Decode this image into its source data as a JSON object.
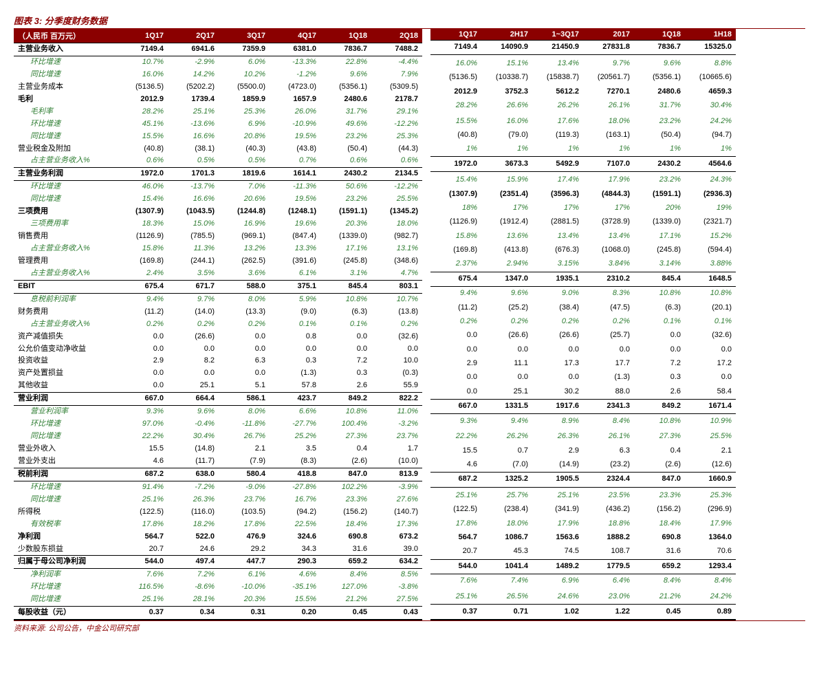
{
  "title": "图表 3: 分季度财务数据",
  "source": "资料来源: 公司公告，中金公司研究部",
  "label_header": "（人民币 百万元）",
  "colors": {
    "header_bg": "#8b0000",
    "header_fg": "#ffffff",
    "green": "#2e7d32",
    "title": "#8b0000"
  },
  "left": {
    "cols": [
      "1Q17",
      "2Q17",
      "3Q17",
      "4Q17",
      "1Q18",
      "2Q18"
    ]
  },
  "right": {
    "cols": [
      "1Q17",
      "2H17",
      "1~3Q17",
      "2017",
      "1Q18",
      "1H18"
    ]
  },
  "rows": [
    {
      "k": "rev",
      "label": "主营业务收入",
      "cls": "section",
      "L": [
        "7149.4",
        "6941.6",
        "7359.9",
        "6381.0",
        "7836.7",
        "7488.2"
      ],
      "R": [
        "7149.4",
        "14090.9",
        "21450.9",
        "27831.8",
        "7836.7",
        "15325.0"
      ]
    },
    {
      "k": "rev_qoq",
      "label": "环比增速",
      "cls": "sub",
      "L": [
        "10.7%",
        "-2.9%",
        "6.0%",
        "-13.3%",
        "22.8%",
        "-4.4%"
      ],
      "R": [
        "",
        "",
        "",
        "",
        "",
        ""
      ]
    },
    {
      "k": "rev_yoy",
      "label": "同比增速",
      "cls": "sub",
      "L": [
        "16.0%",
        "14.2%",
        "10.2%",
        "-1.2%",
        "9.6%",
        "7.9%"
      ],
      "R": [
        "16.0%",
        "15.1%",
        "13.4%",
        "9.7%",
        "9.6%",
        "8.8%"
      ]
    },
    {
      "k": "cogs",
      "label": "主营业务成本",
      "cls": "plain",
      "L": [
        "(5136.5)",
        "(5202.2)",
        "(5500.0)",
        "(4723.0)",
        "(5356.1)",
        "(5309.5)"
      ],
      "R": [
        "(5136.5)",
        "(10338.7)",
        "(15838.7)",
        "(20561.7)",
        "(5356.1)",
        "(10665.6)"
      ]
    },
    {
      "k": "gp",
      "label": "毛利",
      "cls": "bold",
      "L": [
        "2012.9",
        "1739.4",
        "1859.9",
        "1657.9",
        "2480.6",
        "2178.7"
      ],
      "R": [
        "2012.9",
        "3752.3",
        "5612.2",
        "7270.1",
        "2480.6",
        "4659.3"
      ]
    },
    {
      "k": "gpm",
      "label": "毛利率",
      "cls": "sub",
      "L": [
        "28.2%",
        "25.1%",
        "25.3%",
        "26.0%",
        "31.7%",
        "29.1%"
      ],
      "R": [
        "28.2%",
        "26.6%",
        "26.2%",
        "26.1%",
        "31.7%",
        "30.4%"
      ]
    },
    {
      "k": "gp_qoq",
      "label": "环比增速",
      "cls": "sub",
      "L": [
        "45.1%",
        "-13.6%",
        "6.9%",
        "-10.9%",
        "49.6%",
        "-12.2%"
      ],
      "R": [
        "",
        "",
        "",
        "",
        "",
        ""
      ]
    },
    {
      "k": "gp_yoy",
      "label": "同比增速",
      "cls": "sub",
      "L": [
        "15.5%",
        "16.6%",
        "20.8%",
        "19.5%",
        "23.2%",
        "25.3%"
      ],
      "R": [
        "15.5%",
        "16.0%",
        "17.6%",
        "18.0%",
        "23.2%",
        "24.2%"
      ]
    },
    {
      "k": "tax",
      "label": "营业税金及附加",
      "cls": "plain",
      "L": [
        "(40.8)",
        "(38.1)",
        "(40.3)",
        "(43.8)",
        "(50.4)",
        "(44.3)"
      ],
      "R": [
        "(40.8)",
        "(79.0)",
        "(119.3)",
        "(163.1)",
        "(50.4)",
        "(94.7)"
      ]
    },
    {
      "k": "tax_pct",
      "label": "占主营业务收入%",
      "cls": "sub",
      "L": [
        "0.6%",
        "0.5%",
        "0.5%",
        "0.7%",
        "0.6%",
        "0.6%"
      ],
      "R": [
        "1%",
        "1%",
        "1%",
        "1%",
        "1%",
        "1%"
      ]
    },
    {
      "k": "op_biz",
      "label": "主营业务利润",
      "cls": "section",
      "L": [
        "1972.0",
        "1701.3",
        "1819.6",
        "1614.1",
        "2430.2",
        "2134.5"
      ],
      "R": [
        "1972.0",
        "3673.3",
        "5492.9",
        "7107.0",
        "2430.2",
        "4564.6"
      ]
    },
    {
      "k": "ob_qoq",
      "label": "环比增速",
      "cls": "sub",
      "L": [
        "46.0%",
        "-13.7%",
        "7.0%",
        "-11.3%",
        "50.6%",
        "-12.2%"
      ],
      "R": [
        "",
        "",
        "",
        "",
        "",
        ""
      ]
    },
    {
      "k": "ob_yoy",
      "label": "同比增速",
      "cls": "sub",
      "L": [
        "15.4%",
        "16.6%",
        "20.6%",
        "19.5%",
        "23.2%",
        "25.5%"
      ],
      "R": [
        "15.4%",
        "15.9%",
        "17.4%",
        "17.9%",
        "23.2%",
        "24.3%"
      ]
    },
    {
      "k": "opex",
      "label": "三项费用",
      "cls": "bold",
      "L": [
        "(1307.9)",
        "(1043.5)",
        "(1244.8)",
        "(1248.1)",
        "(1591.1)",
        "(1345.2)"
      ],
      "R": [
        "(1307.9)",
        "(2351.4)",
        "(3596.3)",
        "(4844.3)",
        "(1591.1)",
        "(2936.3)"
      ]
    },
    {
      "k": "opex_r",
      "label": "三项费用率",
      "cls": "sub",
      "L": [
        "18.3%",
        "15.0%",
        "16.9%",
        "19.6%",
        "20.3%",
        "18.0%"
      ],
      "R": [
        "18%",
        "17%",
        "17%",
        "17%",
        "20%",
        "19%"
      ]
    },
    {
      "k": "sell",
      "label": "销售费用",
      "cls": "plain",
      "L": [
        "(1126.9)",
        "(785.5)",
        "(969.1)",
        "(847.4)",
        "(1339.0)",
        "(982.7)"
      ],
      "R": [
        "(1126.9)",
        "(1912.4)",
        "(2881.5)",
        "(3728.9)",
        "(1339.0)",
        "(2321.7)"
      ]
    },
    {
      "k": "sell_pct",
      "label": "占主营业务收入%",
      "cls": "sub",
      "L": [
        "15.8%",
        "11.3%",
        "13.2%",
        "13.3%",
        "17.1%",
        "13.1%"
      ],
      "R": [
        "15.8%",
        "13.6%",
        "13.4%",
        "13.4%",
        "17.1%",
        "15.2%"
      ]
    },
    {
      "k": "admin",
      "label": "管理费用",
      "cls": "plain",
      "L": [
        "(169.8)",
        "(244.1)",
        "(262.5)",
        "(391.6)",
        "(245.8)",
        "(348.6)"
      ],
      "R": [
        "(169.8)",
        "(413.8)",
        "(676.3)",
        "(1068.0)",
        "(245.8)",
        "(594.4)"
      ]
    },
    {
      "k": "admin_pct",
      "label": "占主营业务收入%",
      "cls": "sub",
      "L": [
        "2.4%",
        "3.5%",
        "3.6%",
        "6.1%",
        "3.1%",
        "4.7%"
      ],
      "R": [
        "2.37%",
        "2.94%",
        "3.15%",
        "3.84%",
        "3.14%",
        "3.88%"
      ]
    },
    {
      "k": "ebit",
      "label": "EBIT",
      "cls": "section",
      "L": [
        "675.4",
        "671.7",
        "588.0",
        "375.1",
        "845.4",
        "803.1"
      ],
      "R": [
        "675.4",
        "1347.0",
        "1935.1",
        "2310.2",
        "845.4",
        "1648.5"
      ]
    },
    {
      "k": "ebit_m",
      "label": "息税前利润率",
      "cls": "sub",
      "L": [
        "9.4%",
        "9.7%",
        "8.0%",
        "5.9%",
        "10.8%",
        "10.7%"
      ],
      "R": [
        "9.4%",
        "9.6%",
        "9.0%",
        "8.3%",
        "10.8%",
        "10.8%"
      ]
    },
    {
      "k": "fin",
      "label": "财务费用",
      "cls": "plain",
      "L": [
        "(11.2)",
        "(14.0)",
        "(13.3)",
        "(9.0)",
        "(6.3)",
        "(13.8)"
      ],
      "R": [
        "(11.2)",
        "(25.2)",
        "(38.4)",
        "(47.5)",
        "(6.3)",
        "(20.1)"
      ]
    },
    {
      "k": "fin_pct",
      "label": "占主营业务收入%",
      "cls": "sub",
      "L": [
        "0.2%",
        "0.2%",
        "0.2%",
        "0.1%",
        "0.1%",
        "0.2%"
      ],
      "R": [
        "0.2%",
        "0.2%",
        "0.2%",
        "0.2%",
        "0.1%",
        "0.1%"
      ]
    },
    {
      "k": "impair",
      "label": "资产减值损失",
      "cls": "plain",
      "L": [
        "0.0",
        "(26.6)",
        "0.0",
        "0.8",
        "0.0",
        "(32.6)"
      ],
      "R": [
        "0.0",
        "(26.6)",
        "(26.6)",
        "(25.7)",
        "0.0",
        "(32.6)"
      ]
    },
    {
      "k": "fv",
      "label": "公允价值变动净收益",
      "cls": "plain",
      "L": [
        "0.0",
        "0.0",
        "0.0",
        "0.0",
        "0.0",
        "0.0"
      ],
      "R": [
        "0.0",
        "0.0",
        "0.0",
        "0.0",
        "0.0",
        "0.0"
      ]
    },
    {
      "k": "inv_inc",
      "label": "投资收益",
      "cls": "plain",
      "L": [
        "2.9",
        "8.2",
        "6.3",
        "0.3",
        "7.2",
        "10.0"
      ],
      "R": [
        "2.9",
        "11.1",
        "17.3",
        "17.7",
        "7.2",
        "17.2"
      ]
    },
    {
      "k": "disp",
      "label": "资产处置损益",
      "cls": "plain",
      "L": [
        "0.0",
        "0.0",
        "0.0",
        "(1.3)",
        "0.3",
        "(0.3)"
      ],
      "R": [
        "0.0",
        "0.0",
        "0.0",
        "(1.3)",
        "0.3",
        "0.0"
      ]
    },
    {
      "k": "other",
      "label": "其他收益",
      "cls": "plain",
      "L": [
        "0.0",
        "25.1",
        "5.1",
        "57.8",
        "2.6",
        "55.9"
      ],
      "R": [
        "0.0",
        "25.1",
        "30.2",
        "88.0",
        "2.6",
        "58.4"
      ]
    },
    {
      "k": "op_prof",
      "label": "营业利润",
      "cls": "section",
      "L": [
        "667.0",
        "664.4",
        "586.1",
        "423.7",
        "849.2",
        "822.2"
      ],
      "R": [
        "667.0",
        "1331.5",
        "1917.6",
        "2341.3",
        "849.2",
        "1671.4"
      ]
    },
    {
      "k": "op_m",
      "label": "营业利润率",
      "cls": "sub",
      "L": [
        "9.3%",
        "9.6%",
        "8.0%",
        "6.6%",
        "10.8%",
        "11.0%"
      ],
      "R": [
        "9.3%",
        "9.4%",
        "8.9%",
        "8.4%",
        "10.8%",
        "10.9%"
      ]
    },
    {
      "k": "op_qoq",
      "label": "环比增速",
      "cls": "sub",
      "L": [
        "97.0%",
        "-0.4%",
        "-11.8%",
        "-27.7%",
        "100.4%",
        "-3.2%"
      ],
      "R": [
        "",
        "",
        "",
        "",
        "",
        ""
      ]
    },
    {
      "k": "op_yoy",
      "label": "同比增速",
      "cls": "sub",
      "L": [
        "22.2%",
        "30.4%",
        "26.7%",
        "25.2%",
        "27.3%",
        "23.7%"
      ],
      "R": [
        "22.2%",
        "26.2%",
        "26.3%",
        "26.1%",
        "27.3%",
        "25.5%"
      ]
    },
    {
      "k": "nop_in",
      "label": "营业外收入",
      "cls": "plain",
      "L": [
        "15.5",
        "(14.8)",
        "2.1",
        "3.5",
        "0.4",
        "1.7"
      ],
      "R": [
        "15.5",
        "0.7",
        "2.9",
        "6.3",
        "0.4",
        "2.1"
      ]
    },
    {
      "k": "nop_out",
      "label": "营业外支出",
      "cls": "plain",
      "L": [
        "4.6",
        "(11.7)",
        "(7.9)",
        "(8.3)",
        "(2.6)",
        "(10.0)"
      ],
      "R": [
        "4.6",
        "(7.0)",
        "(14.9)",
        "(23.2)",
        "(2.6)",
        "(12.6)"
      ]
    },
    {
      "k": "pbt",
      "label": "税前利润",
      "cls": "section",
      "L": [
        "687.2",
        "638.0",
        "580.4",
        "418.8",
        "847.0",
        "813.9"
      ],
      "R": [
        "687.2",
        "1325.2",
        "1905.5",
        "2324.4",
        "847.0",
        "1660.9"
      ]
    },
    {
      "k": "pbt_qoq",
      "label": "环比增速",
      "cls": "sub",
      "L": [
        "91.4%",
        "-7.2%",
        "-9.0%",
        "-27.8%",
        "102.2%",
        "-3.9%"
      ],
      "R": [
        "",
        "",
        "",
        "",
        "",
        ""
      ]
    },
    {
      "k": "pbt_yoy",
      "label": "同比增速",
      "cls": "sub",
      "L": [
        "25.1%",
        "26.3%",
        "23.7%",
        "16.7%",
        "23.3%",
        "27.6%"
      ],
      "R": [
        "25.1%",
        "25.7%",
        "25.1%",
        "23.5%",
        "23.3%",
        "25.3%"
      ]
    },
    {
      "k": "inc_tax",
      "label": "所得税",
      "cls": "plain",
      "L": [
        "(122.5)",
        "(116.0)",
        "(103.5)",
        "(94.2)",
        "(156.2)",
        "(140.7)"
      ],
      "R": [
        "(122.5)",
        "(238.4)",
        "(341.9)",
        "(436.2)",
        "(156.2)",
        "(296.9)"
      ]
    },
    {
      "k": "etr",
      "label": "有效税率",
      "cls": "sub",
      "L": [
        "17.8%",
        "18.2%",
        "17.8%",
        "22.5%",
        "18.4%",
        "17.3%"
      ],
      "R": [
        "17.8%",
        "18.0%",
        "17.9%",
        "18.8%",
        "18.4%",
        "17.9%"
      ]
    },
    {
      "k": "np",
      "label": "净利润",
      "cls": "bold",
      "L": [
        "564.7",
        "522.0",
        "476.9",
        "324.6",
        "690.8",
        "673.2"
      ],
      "R": [
        "564.7",
        "1086.7",
        "1563.6",
        "1888.2",
        "690.8",
        "1364.0"
      ]
    },
    {
      "k": "mi",
      "label": "少数股东损益",
      "cls": "plain",
      "L": [
        "20.7",
        "24.6",
        "29.2",
        "34.3",
        "31.6",
        "39.0"
      ],
      "R": [
        "20.7",
        "45.3",
        "74.5",
        "108.7",
        "31.6",
        "70.6"
      ]
    },
    {
      "k": "att",
      "label": "归属于母公司净利润",
      "cls": "section",
      "L": [
        "544.0",
        "497.4",
        "447.7",
        "290.3",
        "659.2",
        "634.2"
      ],
      "R": [
        "544.0",
        "1041.4",
        "1489.2",
        "1779.5",
        "659.2",
        "1293.4"
      ]
    },
    {
      "k": "npm",
      "label": "净利润率",
      "cls": "sub",
      "L": [
        "7.6%",
        "7.2%",
        "6.1%",
        "4.6%",
        "8.4%",
        "8.5%"
      ],
      "R": [
        "7.6%",
        "7.4%",
        "6.9%",
        "6.4%",
        "8.4%",
        "8.4%"
      ]
    },
    {
      "k": "np_qoq",
      "label": "环比增速",
      "cls": "sub",
      "L": [
        "116.5%",
        "-8.6%",
        "-10.0%",
        "-35.1%",
        "127.0%",
        "-3.8%"
      ],
      "R": [
        "",
        "",
        "",
        "",
        "",
        ""
      ]
    },
    {
      "k": "np_yoy",
      "label": "同比增速",
      "cls": "sub",
      "L": [
        "25.1%",
        "28.1%",
        "20.3%",
        "15.5%",
        "21.2%",
        "27.5%"
      ],
      "R": [
        "25.1%",
        "26.5%",
        "24.6%",
        "23.0%",
        "21.2%",
        "24.2%"
      ]
    },
    {
      "k": "eps",
      "label": "每股收益（元）",
      "cls": "final",
      "L": [
        "0.37",
        "0.34",
        "0.31",
        "0.20",
        "0.45",
        "0.43"
      ],
      "R": [
        "0.37",
        "0.71",
        "1.02",
        "1.22",
        "0.45",
        "0.89"
      ]
    }
  ]
}
